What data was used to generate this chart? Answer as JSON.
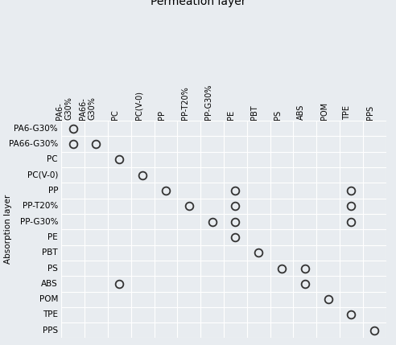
{
  "row_labels": [
    "PA6-G30%",
    "PA66-G30%",
    "PC",
    "PC(V-0)",
    "PP",
    "PP-T20%",
    "PP-G30%",
    "PE",
    "PBT",
    "PS",
    "ABS",
    "POM",
    "TPE",
    "PPS"
  ],
  "col_labels": [
    "PA6-\nG30%",
    "PA66-\nG30%",
    "PC",
    "PC(V-0)",
    "PP",
    "PP-T20%",
    "PP-G30%",
    "PE",
    "PBT",
    "PS",
    "ABS",
    "POM",
    "TPE",
    "PPS"
  ],
  "circles": [
    [
      0,
      0
    ],
    [
      1,
      0
    ],
    [
      1,
      1
    ],
    [
      2,
      2
    ],
    [
      3,
      3
    ],
    [
      4,
      4
    ],
    [
      4,
      7
    ],
    [
      4,
      12
    ],
    [
      5,
      5
    ],
    [
      5,
      7
    ],
    [
      5,
      12
    ],
    [
      6,
      6
    ],
    [
      6,
      7
    ],
    [
      6,
      12
    ],
    [
      7,
      7
    ],
    [
      8,
      8
    ],
    [
      9,
      9
    ],
    [
      9,
      10
    ],
    [
      10,
      2
    ],
    [
      10,
      10
    ],
    [
      11,
      11
    ],
    [
      12,
      12
    ],
    [
      13,
      13
    ]
  ],
  "title": "Permeation layer",
  "ylabel": "Absorption layer",
  "bg_color": "#e8ecf0",
  "circle_color": "#333333",
  "circle_facecolor": "none",
  "circle_linewidth": 1.3,
  "title_fontsize": 10,
  "label_fontsize": 7.5,
  "tick_fontsize": 7,
  "row_tick_fontsize": 7.5
}
